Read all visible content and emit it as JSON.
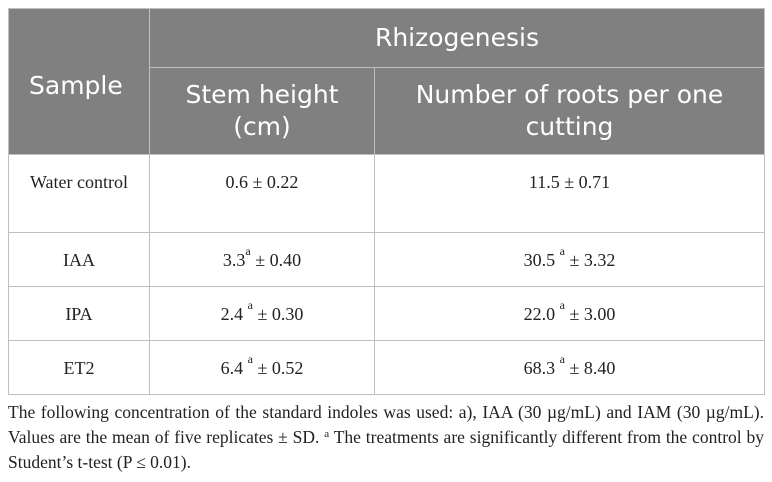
{
  "table": {
    "header": {
      "sample": "Sample",
      "group": "Rhizogenesis",
      "col1": "Stem height (cm)",
      "col2": "Number of roots per one cutting"
    },
    "rows": [
      {
        "sample": "Water control",
        "stem_value": "0.6",
        "stem_sup": "",
        "stem_sd": "± 0.22",
        "roots_value": "11.5",
        "roots_sup": "",
        "roots_sd": "± 0.71"
      },
      {
        "sample": "IAA",
        "stem_value": "3.3",
        "stem_sup": "a",
        "stem_sd": "± 0.40",
        "roots_value": "30.5",
        "roots_sup": "a",
        "roots_sd": "± 3.32"
      },
      {
        "sample": "IPA",
        "stem_value": "2.4",
        "stem_sup": "a",
        "stem_sd": "± 0.30",
        "roots_value": "22.0",
        "roots_sup": "a",
        "roots_sd": "± 3.00"
      },
      {
        "sample": "ET2",
        "stem_value": "6.4",
        "stem_sup": "a",
        "stem_sd": "± 0.52",
        "roots_value": "68.3",
        "roots_sup": "a",
        "roots_sd": "± 8.40"
      }
    ]
  },
  "footnote": {
    "text_before": "The following concentration of the standard indoles was used: a), IAA (30 µg/mL) and IAM (30 µg/mL). Values are the mean of five replicates ± SD.",
    "sup": "a",
    "text_after": "The treatments are significantly different from the control by Student’s t-test (P ≤ 0.01)."
  },
  "colors": {
    "header_bg": "#808080",
    "header_text": "#ffffff",
    "border": "#bfbfbf",
    "text": "#222222"
  }
}
